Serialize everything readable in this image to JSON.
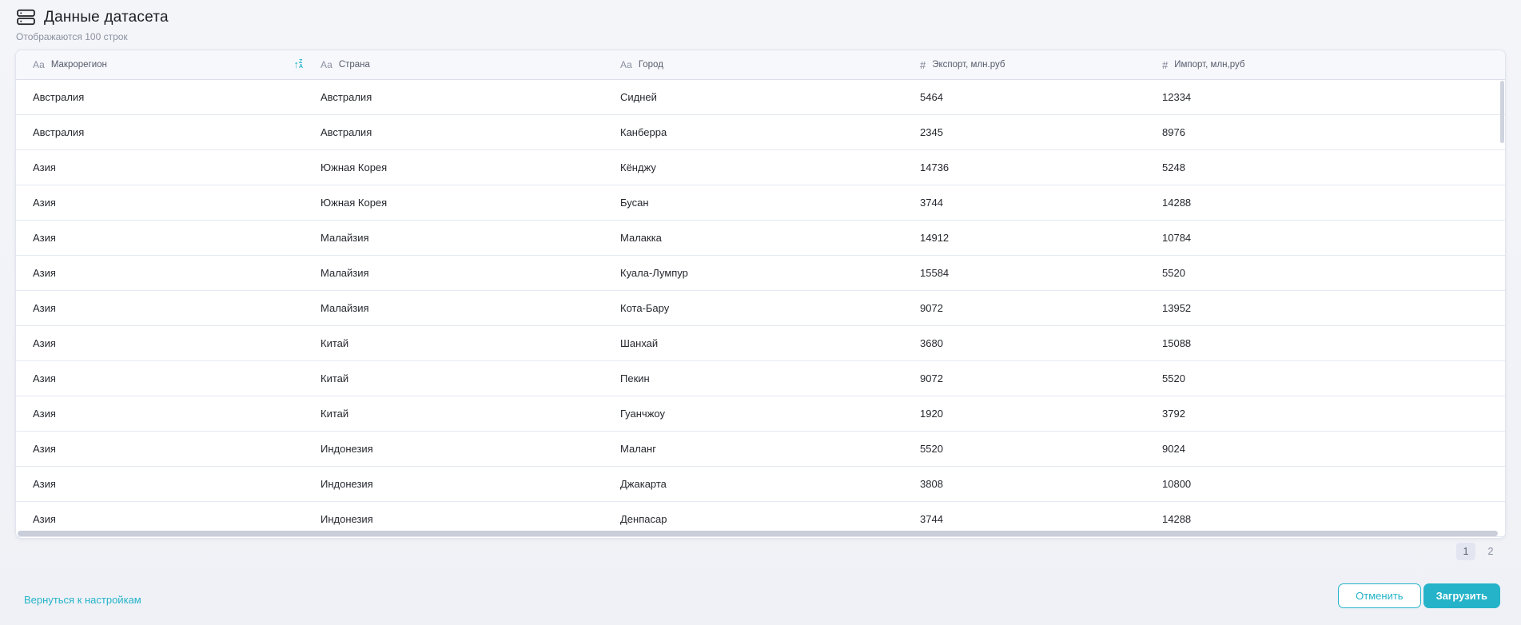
{
  "colors": {
    "accent": "#25b3c9"
  },
  "header": {
    "title": "Данные датасета",
    "subtitle": "Отображаются 100 строк"
  },
  "table": {
    "columns": [
      {
        "kind": "Аа",
        "label": "Макрорегион",
        "sorted": true
      },
      {
        "kind": "Аа",
        "label": "Страна",
        "sorted": false
      },
      {
        "kind": "Аа",
        "label": "Город",
        "sorted": false
      },
      {
        "kind": "#",
        "label": "Экспорт, млн.руб",
        "sorted": false
      },
      {
        "kind": "#",
        "label": "Импорт, млн,руб",
        "sorted": false
      }
    ],
    "rows": [
      [
        "Австралия",
        "Австралия",
        "Сидней",
        "5464",
        "12334"
      ],
      [
        "Австралия",
        "Австралия",
        "Канберра",
        "2345",
        "8976"
      ],
      [
        "Азия",
        "Южная Корея",
        "Кёнджу",
        "14736",
        "5248"
      ],
      [
        "Азия",
        "Южная Корея",
        "Бусан",
        "3744",
        "14288"
      ],
      [
        "Азия",
        "Малайзия",
        "Малакка",
        "14912",
        "10784"
      ],
      [
        "Азия",
        "Малайзия",
        "Куала-Лумпур",
        "15584",
        "5520"
      ],
      [
        "Азия",
        "Малайзия",
        "Кота-Бару",
        "9072",
        "13952"
      ],
      [
        "Азия",
        "Китай",
        "Шанхай",
        "3680",
        "15088"
      ],
      [
        "Азия",
        "Китай",
        "Пекин",
        "9072",
        "5520"
      ],
      [
        "Азия",
        "Китай",
        "Гуанчжоу",
        "1920",
        "3792"
      ],
      [
        "Азия",
        "Индонезия",
        "Маланг",
        "5520",
        "9024"
      ],
      [
        "Азия",
        "Индонезия",
        "Джакарта",
        "3808",
        "10800"
      ],
      [
        "Азия",
        "Индонезия",
        "Денпасар",
        "3744",
        "14288"
      ]
    ]
  },
  "pagination": {
    "pages": [
      {
        "label": "1",
        "active": true
      },
      {
        "label": "2",
        "active": false
      }
    ]
  },
  "footer": {
    "back_link": "Вернуться к настройкам",
    "cancel_label": "Отменить",
    "upload_label": "Загрузить"
  }
}
